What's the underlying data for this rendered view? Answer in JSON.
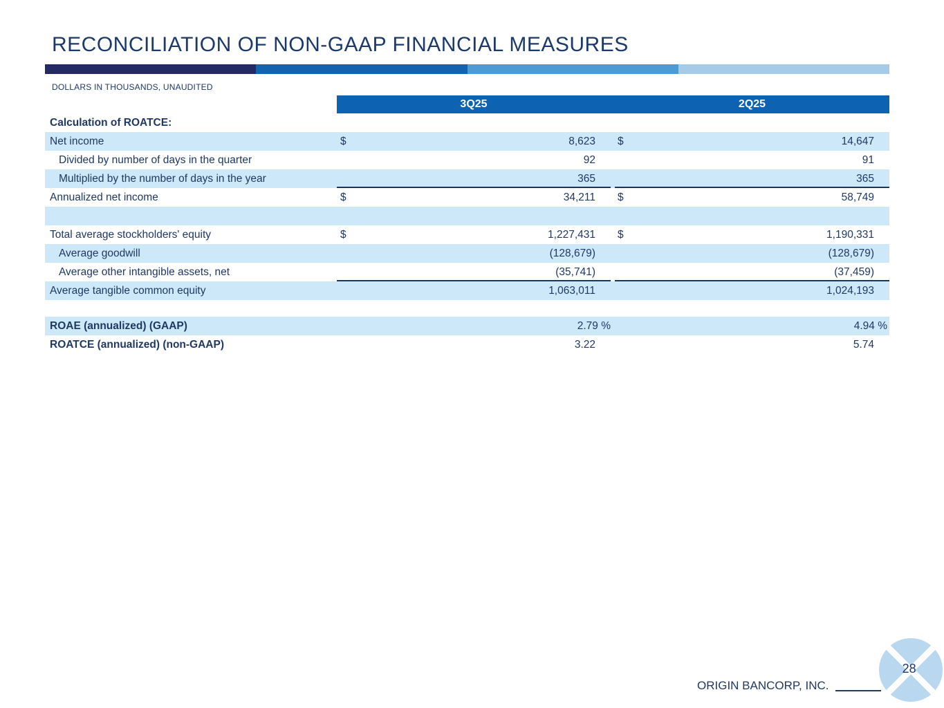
{
  "slide": {
    "title": "RECONCILIATION OF NON-GAAP FINANCIAL MEASURES",
    "subtitle": "DOLLARS IN THOUSANDS, UNAUDITED",
    "footer_company": "ORIGIN BANCORP, INC.",
    "page_number": "28",
    "colors": {
      "title_navy": "#1b3a6b",
      "body_navy": "#1f3864",
      "header_bar_blue": "#0d62b2",
      "row_shade_blue": "#cde8f8",
      "rule_navy": "#17365d",
      "accent_segments": [
        "#242a64",
        "#1463af",
        "#4d9bd5",
        "#a6cbe8"
      ],
      "logo_circle_blue": "#b9d8ef"
    }
  },
  "table": {
    "columns": [
      "3Q25",
      "2Q25"
    ],
    "rows": [
      {
        "type": "section",
        "label": "Calculation of ROATCE:",
        "bold": true,
        "shade": false
      },
      {
        "type": "data",
        "label": "Net income",
        "indent": false,
        "bold": false,
        "shade": true,
        "dollar": true,
        "underline": false,
        "pct": false,
        "values": [
          "8,623",
          "14,647"
        ]
      },
      {
        "type": "data",
        "label": "Divided by number of days in the quarter",
        "indent": true,
        "bold": false,
        "shade": false,
        "dollar": false,
        "underline": false,
        "pct": false,
        "values": [
          "92",
          "91"
        ]
      },
      {
        "type": "data",
        "label": "Multiplied by the number of days in the year",
        "indent": true,
        "bold": false,
        "shade": true,
        "dollar": false,
        "underline": true,
        "pct": false,
        "values": [
          "365",
          "365"
        ]
      },
      {
        "type": "data",
        "label": "Annualized net income",
        "indent": false,
        "bold": false,
        "shade": false,
        "dollar": true,
        "underline": false,
        "pct": false,
        "values": [
          "34,211",
          "58,749"
        ]
      },
      {
        "type": "blank",
        "shade": true
      },
      {
        "type": "data",
        "label": "Total average stockholders' equity",
        "indent": false,
        "bold": false,
        "shade": false,
        "dollar": true,
        "underline": false,
        "pct": false,
        "values": [
          "1,227,431",
          "1,190,331"
        ]
      },
      {
        "type": "data",
        "label": "Average goodwill",
        "indent": true,
        "bold": false,
        "shade": true,
        "dollar": false,
        "underline": false,
        "pct": false,
        "values": [
          "(128,679)",
          "(128,679)"
        ]
      },
      {
        "type": "data",
        "label": "Average other intangible assets, net",
        "indent": true,
        "bold": false,
        "shade": false,
        "dollar": false,
        "underline": true,
        "pct": false,
        "values": [
          "(35,741)",
          "(37,459)"
        ]
      },
      {
        "type": "data",
        "label": "Average tangible common equity",
        "indent": false,
        "bold": false,
        "shade": true,
        "dollar": false,
        "underline": false,
        "pct": false,
        "values": [
          "1,063,011",
          "1,024,193"
        ]
      },
      {
        "type": "spacer",
        "shade": false
      },
      {
        "type": "data",
        "label": "ROAE (annualized) (GAAP)",
        "indent": false,
        "bold": true,
        "shade": true,
        "dollar": false,
        "underline": false,
        "pct": true,
        "values": [
          "2.79 %",
          "4.94 %"
        ]
      },
      {
        "type": "data",
        "label": "ROATCE (annualized) (non-GAAP)",
        "indent": false,
        "bold": true,
        "shade": false,
        "dollar": false,
        "underline": false,
        "pct": false,
        "values": [
          "3.22",
          "5.74"
        ]
      }
    ]
  }
}
